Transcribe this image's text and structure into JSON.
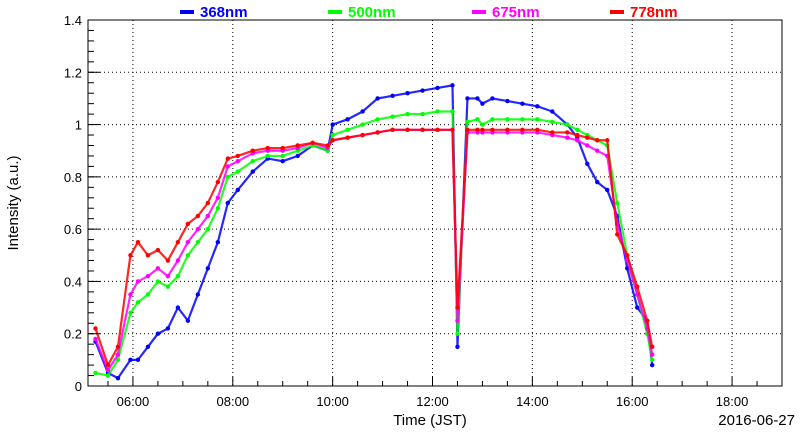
{
  "chart_data": {
    "type": "scatter",
    "title": "",
    "xlabel": "Time (JST)",
    "ylabel": "Intensity (a.u.)",
    "date_label": "2016-06-27",
    "x_unit": "hours (JST, 2016-06-27)",
    "xlim": [
      5.1,
      19.0
    ],
    "ylim": [
      0,
      1.4
    ],
    "x_ticks": [
      {
        "value": 6,
        "label": "06:00"
      },
      {
        "value": 8,
        "label": "08:00"
      },
      {
        "value": 10,
        "label": "10:00"
      },
      {
        "value": 12,
        "label": "12:00"
      },
      {
        "value": 14,
        "label": "14:00"
      },
      {
        "value": 16,
        "label": "16:00"
      },
      {
        "value": 18,
        "label": "18:00"
      }
    ],
    "y_ticks": [
      {
        "value": 0,
        "label": "0"
      },
      {
        "value": 0.2,
        "label": "0.2"
      },
      {
        "value": 0.4,
        "label": "0.4"
      },
      {
        "value": 0.6,
        "label": "0.6"
      },
      {
        "value": 0.8,
        "label": "0.8"
      },
      {
        "value": 1.0,
        "label": "1"
      },
      {
        "value": 1.2,
        "label": "1.2"
      },
      {
        "value": 1.4,
        "label": "1.4"
      }
    ],
    "grid": true,
    "legend_position": "top",
    "series": [
      {
        "name": "368nm",
        "color": "#0000ff",
        "x": [
          5.25,
          5.5,
          5.7,
          5.95,
          6.1,
          6.3,
          6.5,
          6.7,
          6.9,
          7.1,
          7.3,
          7.5,
          7.7,
          7.9,
          8.1,
          8.4,
          8.7,
          9.0,
          9.3,
          9.6,
          9.9,
          10.0,
          10.3,
          10.6,
          10.9,
          11.2,
          11.5,
          11.8,
          12.1,
          12.4,
          12.5,
          12.7,
          12.9,
          13.0,
          13.2,
          13.5,
          13.8,
          14.1,
          14.4,
          14.7,
          14.9,
          15.1,
          15.3,
          15.5,
          15.7,
          15.9,
          16.1,
          16.3,
          16.4
        ],
        "y": [
          0.17,
          0.05,
          0.03,
          0.1,
          0.1,
          0.15,
          0.2,
          0.22,
          0.3,
          0.25,
          0.35,
          0.45,
          0.55,
          0.7,
          0.75,
          0.82,
          0.87,
          0.86,
          0.88,
          0.92,
          0.9,
          1.0,
          1.02,
          1.05,
          1.1,
          1.11,
          1.12,
          1.13,
          1.14,
          1.15,
          0.15,
          1.1,
          1.1,
          1.08,
          1.1,
          1.09,
          1.08,
          1.07,
          1.05,
          1.0,
          0.95,
          0.85,
          0.78,
          0.75,
          0.65,
          0.45,
          0.3,
          0.25,
          0.08
        ]
      },
      {
        "name": "500nm",
        "color": "#00ff00",
        "x": [
          5.25,
          5.5,
          5.7,
          5.95,
          6.1,
          6.3,
          6.5,
          6.7,
          6.9,
          7.1,
          7.3,
          7.5,
          7.7,
          7.9,
          8.1,
          8.4,
          8.7,
          9.0,
          9.3,
          9.6,
          9.9,
          10.0,
          10.3,
          10.6,
          10.9,
          11.2,
          11.5,
          11.8,
          12.1,
          12.4,
          12.5,
          12.7,
          12.9,
          13.0,
          13.2,
          13.5,
          13.8,
          14.1,
          14.4,
          14.7,
          14.9,
          15.1,
          15.3,
          15.5,
          15.7,
          15.9,
          16.1,
          16.3,
          16.4
        ],
        "y": [
          0.05,
          0.04,
          0.1,
          0.28,
          0.32,
          0.35,
          0.4,
          0.38,
          0.42,
          0.5,
          0.55,
          0.6,
          0.68,
          0.8,
          0.82,
          0.86,
          0.88,
          0.88,
          0.9,
          0.92,
          0.9,
          0.96,
          0.98,
          1.0,
          1.02,
          1.03,
          1.04,
          1.04,
          1.05,
          1.05,
          0.2,
          1.01,
          1.02,
          1.0,
          1.02,
          1.02,
          1.02,
          1.02,
          1.01,
          1.0,
          0.98,
          0.96,
          0.94,
          0.92,
          0.7,
          0.5,
          0.35,
          0.2,
          0.1
        ]
      },
      {
        "name": "675nm",
        "color": "#ff00ff",
        "x": [
          5.25,
          5.5,
          5.7,
          5.95,
          6.1,
          6.3,
          6.5,
          6.7,
          6.9,
          7.1,
          7.3,
          7.5,
          7.7,
          7.9,
          8.1,
          8.4,
          8.7,
          9.0,
          9.3,
          9.6,
          9.9,
          10.0,
          10.3,
          10.6,
          10.9,
          11.2,
          11.5,
          11.8,
          12.1,
          12.4,
          12.5,
          12.7,
          12.9,
          13.0,
          13.2,
          13.5,
          13.8,
          14.1,
          14.4,
          14.7,
          14.9,
          15.1,
          15.3,
          15.5,
          15.7,
          15.9,
          16.1,
          16.3,
          16.4
        ],
        "y": [
          0.18,
          0.06,
          0.12,
          0.35,
          0.4,
          0.42,
          0.45,
          0.42,
          0.48,
          0.55,
          0.6,
          0.65,
          0.72,
          0.84,
          0.86,
          0.89,
          0.9,
          0.9,
          0.91,
          0.93,
          0.91,
          0.94,
          0.95,
          0.96,
          0.97,
          0.98,
          0.98,
          0.98,
          0.98,
          0.98,
          0.25,
          0.97,
          0.97,
          0.97,
          0.97,
          0.97,
          0.97,
          0.97,
          0.96,
          0.95,
          0.94,
          0.92,
          0.9,
          0.88,
          0.62,
          0.48,
          0.35,
          0.22,
          0.12
        ]
      },
      {
        "name": "778nm",
        "color": "#ff0000",
        "x": [
          5.25,
          5.5,
          5.7,
          5.95,
          6.1,
          6.3,
          6.5,
          6.7,
          6.9,
          7.1,
          7.3,
          7.5,
          7.7,
          7.9,
          8.1,
          8.4,
          8.7,
          9.0,
          9.3,
          9.6,
          9.9,
          10.0,
          10.3,
          10.6,
          10.9,
          11.2,
          11.5,
          11.8,
          12.1,
          12.4,
          12.5,
          12.7,
          12.9,
          13.0,
          13.2,
          13.5,
          13.8,
          14.1,
          14.4,
          14.7,
          14.9,
          15.1,
          15.3,
          15.5,
          15.7,
          15.9,
          16.1,
          16.3,
          16.4
        ],
        "y": [
          0.22,
          0.08,
          0.15,
          0.5,
          0.55,
          0.5,
          0.52,
          0.48,
          0.55,
          0.62,
          0.65,
          0.7,
          0.78,
          0.87,
          0.88,
          0.9,
          0.91,
          0.91,
          0.92,
          0.93,
          0.92,
          0.94,
          0.95,
          0.96,
          0.97,
          0.98,
          0.98,
          0.98,
          0.98,
          0.98,
          0.3,
          0.98,
          0.98,
          0.98,
          0.98,
          0.98,
          0.98,
          0.98,
          0.97,
          0.97,
          0.96,
          0.95,
          0.94,
          0.94,
          0.58,
          0.5,
          0.38,
          0.25,
          0.15
        ]
      }
    ]
  }
}
